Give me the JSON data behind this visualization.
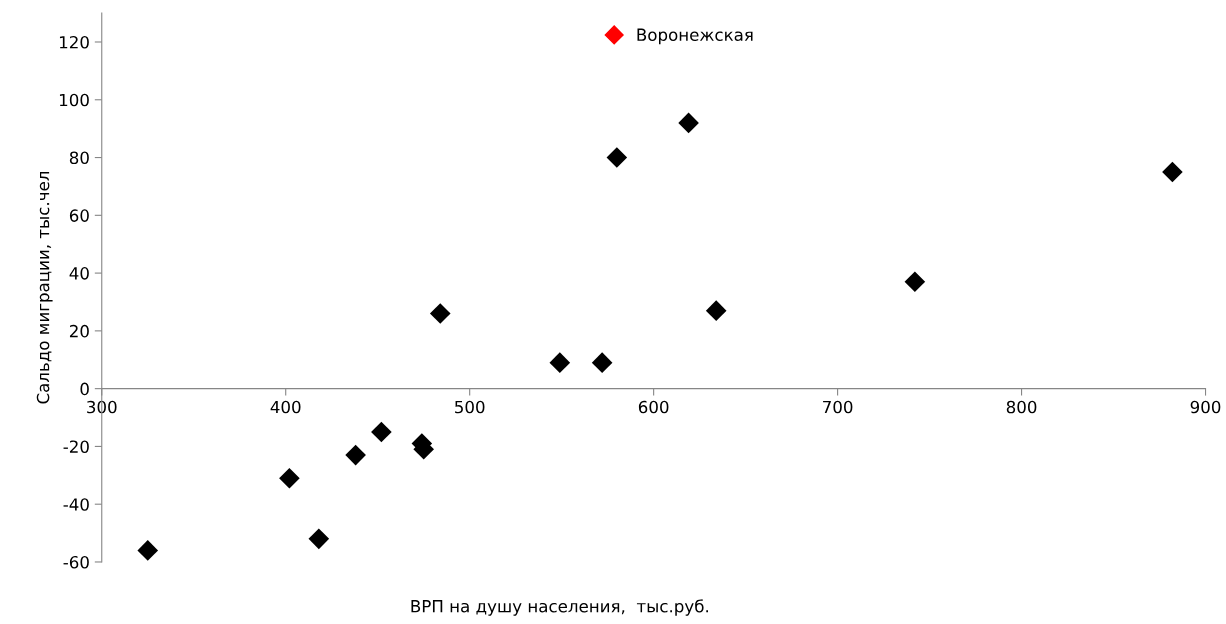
{
  "chart_data": {
    "type": "scatter",
    "xlabel": "ВРП на душу населения,  тыс.руб.",
    "ylabel": "Сальдо миграции, тыс.чел",
    "xlim": [
      300,
      900
    ],
    "xticks": [
      300,
      400,
      500,
      600,
      700,
      800,
      900
    ],
    "ylim": [
      -60,
      130
    ],
    "yticks": [
      -60,
      -40,
      -20,
      0,
      20,
      40,
      60,
      80,
      100,
      120
    ],
    "marker": "diamond",
    "grid": false,
    "legend": "top",
    "series": [
      {
        "color": "#000000",
        "x": [
          325,
          402,
          418,
          438,
          452,
          474,
          475,
          484,
          549,
          572,
          580,
          619,
          634,
          742,
          882
        ],
        "values": [
          -56,
          -31,
          -52,
          -23,
          -15,
          -19,
          -21,
          26,
          9,
          9,
          80,
          92,
          27,
          37,
          75
        ]
      },
      {
        "name": "Воронежская",
        "color": "#ff0000",
        "x": [
          null
        ],
        "values": [
          null
        ]
      }
    ]
  }
}
